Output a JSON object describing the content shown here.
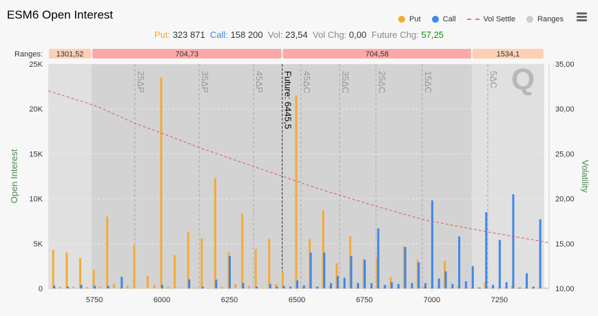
{
  "title": "ESM6 Open Interest",
  "legend": [
    {
      "label": "Put",
      "color": "#f7a935",
      "icon": "circle"
    },
    {
      "label": "Call",
      "color": "#3d87ea",
      "icon": "circle"
    },
    {
      "label": "Vol Settle",
      "color": "#e8756e",
      "icon": "dashed-line"
    },
    {
      "label": "Ranges",
      "color": "#cccccc",
      "icon": "circle"
    }
  ],
  "stats": {
    "put_label": "Put:",
    "put_value": "323 871",
    "call_label": "Call:",
    "call_value": "158 200",
    "vol_label": "Vol:",
    "vol_value": "23,54",
    "volchg_label": "Vol Chg:",
    "volchg_value": "0,00",
    "futchg_label": "Future Chg:",
    "futchg_value": "57,25",
    "put_color": "#f7a935",
    "call_color": "#3d87ea",
    "futchg_color": "#1a8a1a"
  },
  "ranges_label": "Ranges:",
  "chart_data": {
    "type": "bar",
    "xlim": [
      5579,
      7434
    ],
    "ylim": [
      0,
      25000
    ],
    "y2lim": [
      10,
      35
    ],
    "ylabel": "Open Interest",
    "y2label": "Volatility",
    "xticks": [
      "5750",
      "6000",
      "6250",
      "6500",
      "6750",
      "7000",
      "7250"
    ],
    "yticks": [
      "0",
      "5K",
      "10K",
      "15K",
      "20K",
      "25K"
    ],
    "y2ticks": [
      "10,00",
      "15,00",
      "20,00",
      "25,00",
      "30,00",
      "35,00"
    ],
    "grid": true,
    "strikes_start": 5600,
    "strike_step": 25,
    "series": [
      {
        "name": "Put",
        "color": "#f7a935",
        "values": [
          4300,
          200,
          4000,
          200,
          3400,
          150,
          2100,
          200,
          8000,
          500,
          100,
          300,
          4800,
          50,
          1400,
          400,
          23500,
          200,
          3700,
          100,
          6300,
          100,
          5600,
          50,
          12300,
          200,
          4000,
          500,
          8300,
          300,
          4400,
          50,
          5500,
          500,
          1900,
          0,
          21500,
          100,
          5500,
          200,
          8700,
          300,
          2800,
          100,
          5800,
          100,
          3300,
          100,
          3400,
          100,
          1300,
          100,
          4700,
          100,
          3200,
          300,
          100,
          100,
          3100,
          100,
          300,
          100,
          100,
          100,
          700,
          100,
          100,
          100,
          300,
          100,
          100,
          100,
          100,
          100
        ]
      },
      {
        "name": "Call",
        "color": "#3d87ea",
        "values": [
          300,
          0,
          200,
          0,
          400,
          0,
          300,
          0,
          300,
          0,
          1300,
          0,
          0,
          0,
          0,
          0,
          400,
          0,
          0,
          0,
          1000,
          0,
          200,
          0,
          1000,
          0,
          3600,
          0,
          600,
          0,
          200,
          0,
          500,
          200,
          300,
          200,
          900,
          350,
          4000,
          200,
          4000,
          600,
          1400,
          1200,
          3600,
          600,
          3200,
          600,
          6700,
          400,
          700,
          500,
          4600,
          600,
          2900,
          600,
          9800,
          1100,
          1900,
          500,
          5800,
          800,
          2500,
          100,
          8500,
          400,
          5400,
          700,
          10500,
          100,
          1700,
          200,
          7700,
          0
        ]
      }
    ],
    "vol_settle": {
      "strikes": [
        5579,
        5750,
        5900,
        6000,
        6138,
        6300,
        6445.5,
        6550,
        6658,
        6800,
        6964,
        7100,
        7207,
        7320,
        7434
      ],
      "values": [
        32.0,
        30.4,
        28.4,
        27.3,
        25.7,
        24.0,
        22.5,
        21.4,
        20.4,
        19.1,
        17.7,
        16.9,
        16.3,
        15.7,
        15.1
      ]
    },
    "future": {
      "label": "Future: 6445,5",
      "strike": 6445.5
    },
    "delta_lines": [
      {
        "label": "25ΔP",
        "strike": 5900
      },
      {
        "label": "35ΔP",
        "strike": 6138
      },
      {
        "label": "45ΔP",
        "strike": 6339
      },
      {
        "label": "45ΔC",
        "strike": 6515
      },
      {
        "label": "35ΔC",
        "strike": 6658
      },
      {
        "label": "25ΔC",
        "strike": 6793
      },
      {
        "label": "15ΔC",
        "strike": 6964
      },
      {
        "label": "5ΔC",
        "strike": 7207
      }
    ],
    "ranges": [
      {
        "label": "1301,52",
        "from": 5579,
        "to": 5740,
        "color": "#fdd0b6",
        "band": "#e0e0e0"
      },
      {
        "label": "704,73",
        "from": 5740,
        "to": 6445.5,
        "color": "#fba8a8",
        "band": "#d3d3d3"
      },
      {
        "label": "704,58",
        "from": 6445.5,
        "to": 7148,
        "color": "#fba8a8",
        "band": "#d3d3d3"
      },
      {
        "label": "1534,1",
        "from": 7148,
        "to": 7416,
        "color": "#fdd0b6",
        "band": "#e0e0e0"
      }
    ]
  }
}
